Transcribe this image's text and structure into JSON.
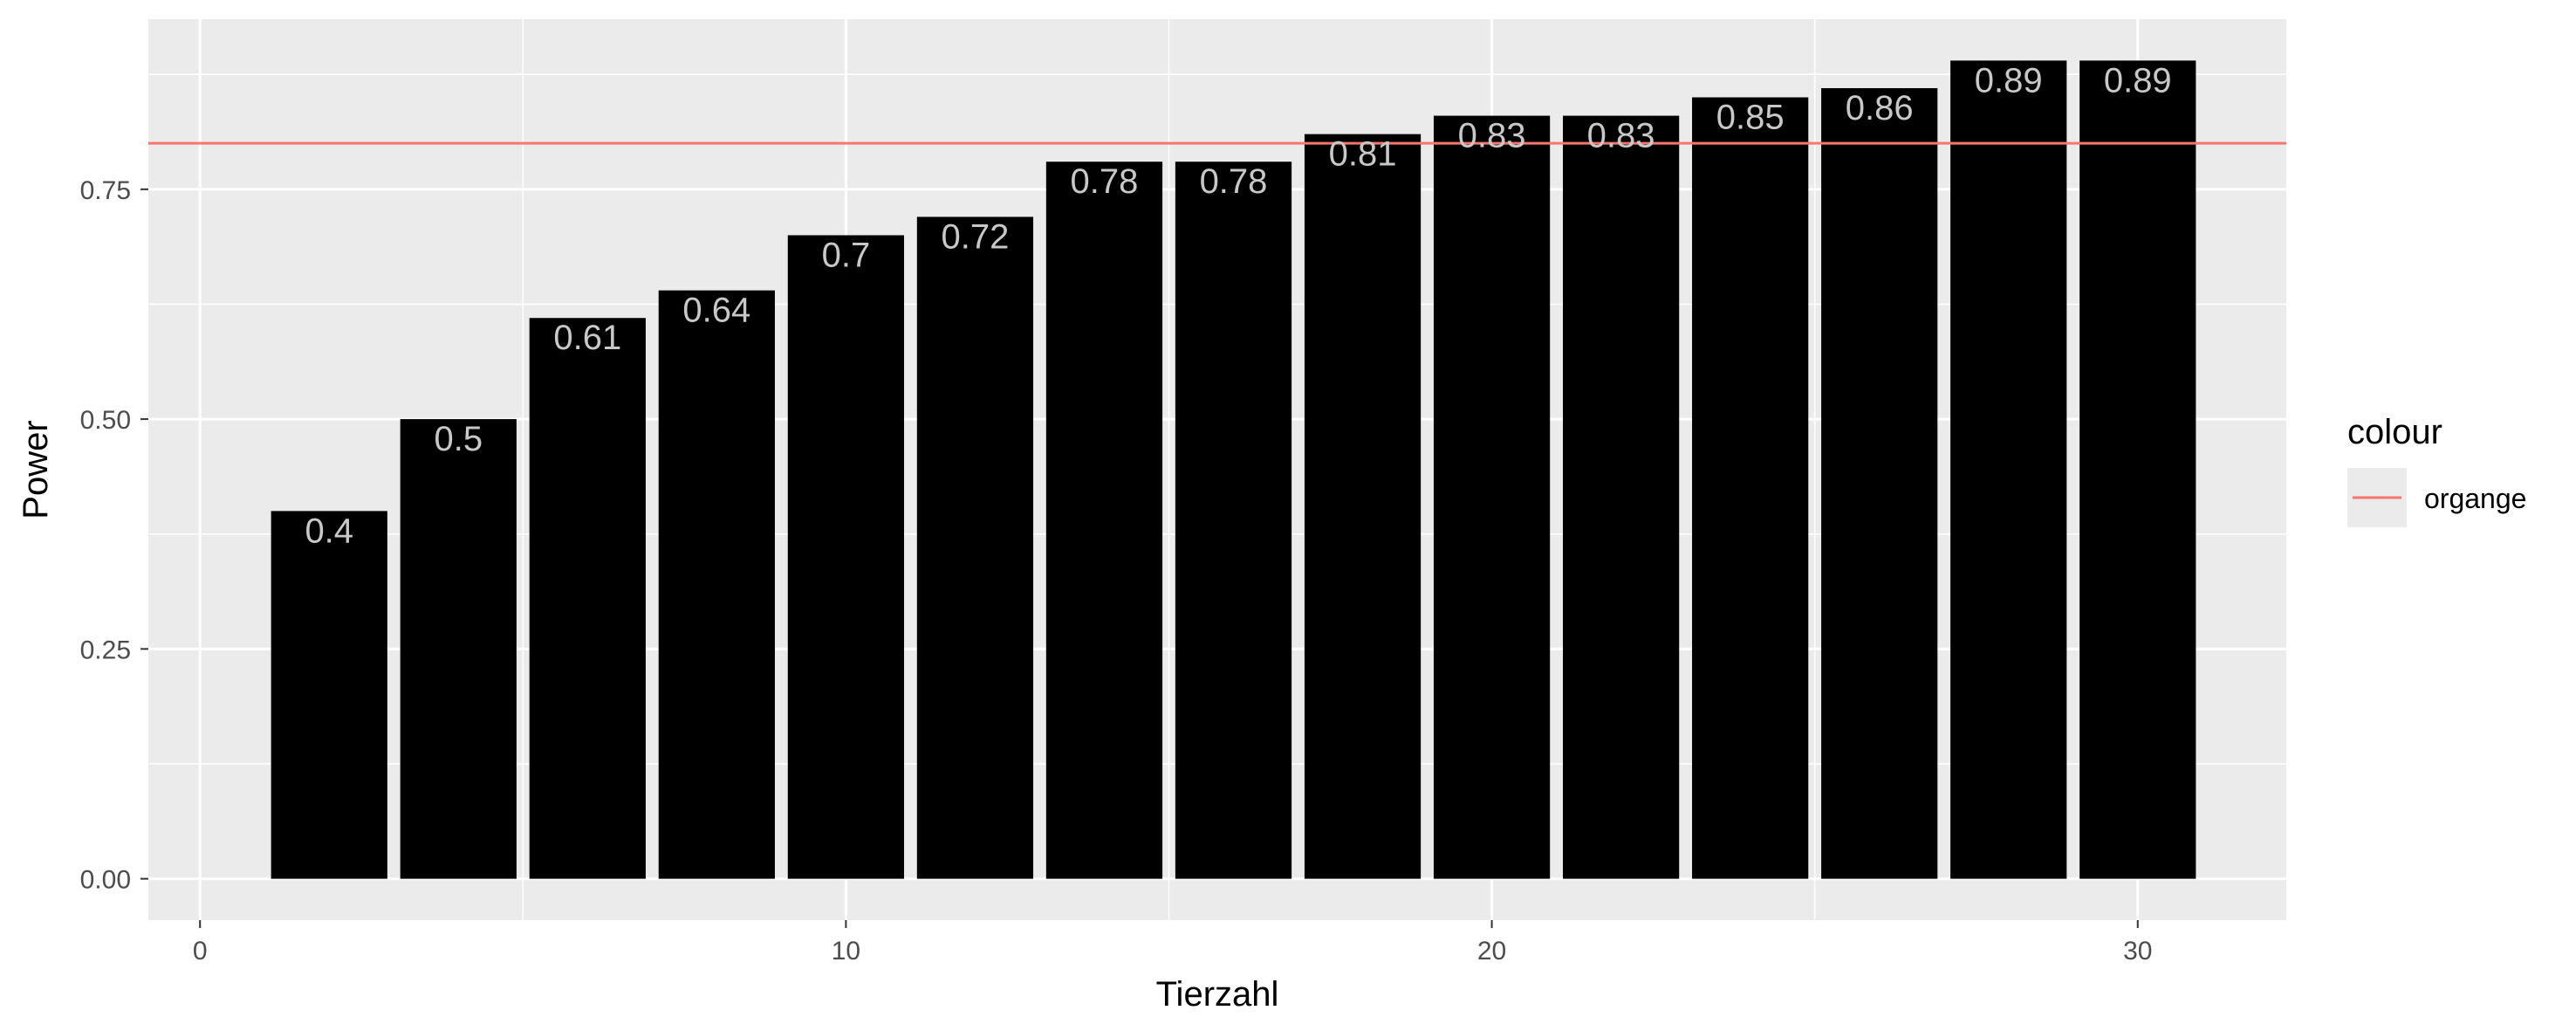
{
  "chart_data": {
    "type": "bar",
    "x": [
      2,
      4,
      6,
      8,
      10,
      12,
      14,
      16,
      18,
      20,
      22,
      24,
      26,
      28,
      30
    ],
    "values": [
      0.4,
      0.5,
      0.61,
      0.64,
      0.7,
      0.72,
      0.78,
      0.78,
      0.81,
      0.83,
      0.83,
      0.85,
      0.86,
      0.89,
      0.89
    ],
    "data_labels": [
      "0.4",
      "0.5",
      "0.61",
      "0.64",
      "0.7",
      "0.72",
      "0.78",
      "0.78",
      "0.81",
      "0.83",
      "0.83",
      "0.85",
      "0.86",
      "0.89",
      "0.89"
    ],
    "xlabel": "Tierzahl",
    "ylabel": "Power",
    "xlim": [
      -0.8,
      32.3
    ],
    "ylim": [
      -0.045,
      0.935
    ],
    "x_ticks": [
      0,
      10,
      20,
      30
    ],
    "x_tick_labels": [
      "0",
      "10",
      "20",
      "30"
    ],
    "y_ticks": [
      0,
      0.25,
      0.5,
      0.75
    ],
    "y_tick_labels": [
      "0.00",
      "0.25",
      "0.50",
      "0.75"
    ],
    "bar_width_units": 1.8,
    "bar_color": "#000000",
    "panel_background": "#ebebeb",
    "grid": true,
    "reference_line": {
      "y": 0.8,
      "color": "#F8766D"
    },
    "legend": {
      "title": "colour",
      "position": "right",
      "items": [
        {
          "label": "organge",
          "color": "#F8766D"
        }
      ]
    }
  }
}
